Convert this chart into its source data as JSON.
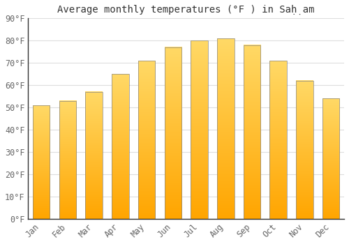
{
  "title": "Average monthly temperatures (°F ) in Saḥ̣am",
  "months": [
    "Jan",
    "Feb",
    "Mar",
    "Apr",
    "May",
    "Jun",
    "Jul",
    "Aug",
    "Sep",
    "Oct",
    "Nov",
    "Dec"
  ],
  "values": [
    51,
    53,
    57,
    65,
    71,
    77,
    80,
    81,
    78,
    71,
    62,
    54
  ],
  "bar_color_top": "#FFD966",
  "bar_color_bottom": "#FFA500",
  "bar_edge_color": "#888888",
  "ylim": [
    0,
    90
  ],
  "yticks": [
    0,
    10,
    20,
    30,
    40,
    50,
    60,
    70,
    80,
    90
  ],
  "background_color": "#ffffff",
  "grid_color": "#dddddd",
  "title_fontsize": 10,
  "tick_fontsize": 8.5,
  "bar_width": 0.65
}
